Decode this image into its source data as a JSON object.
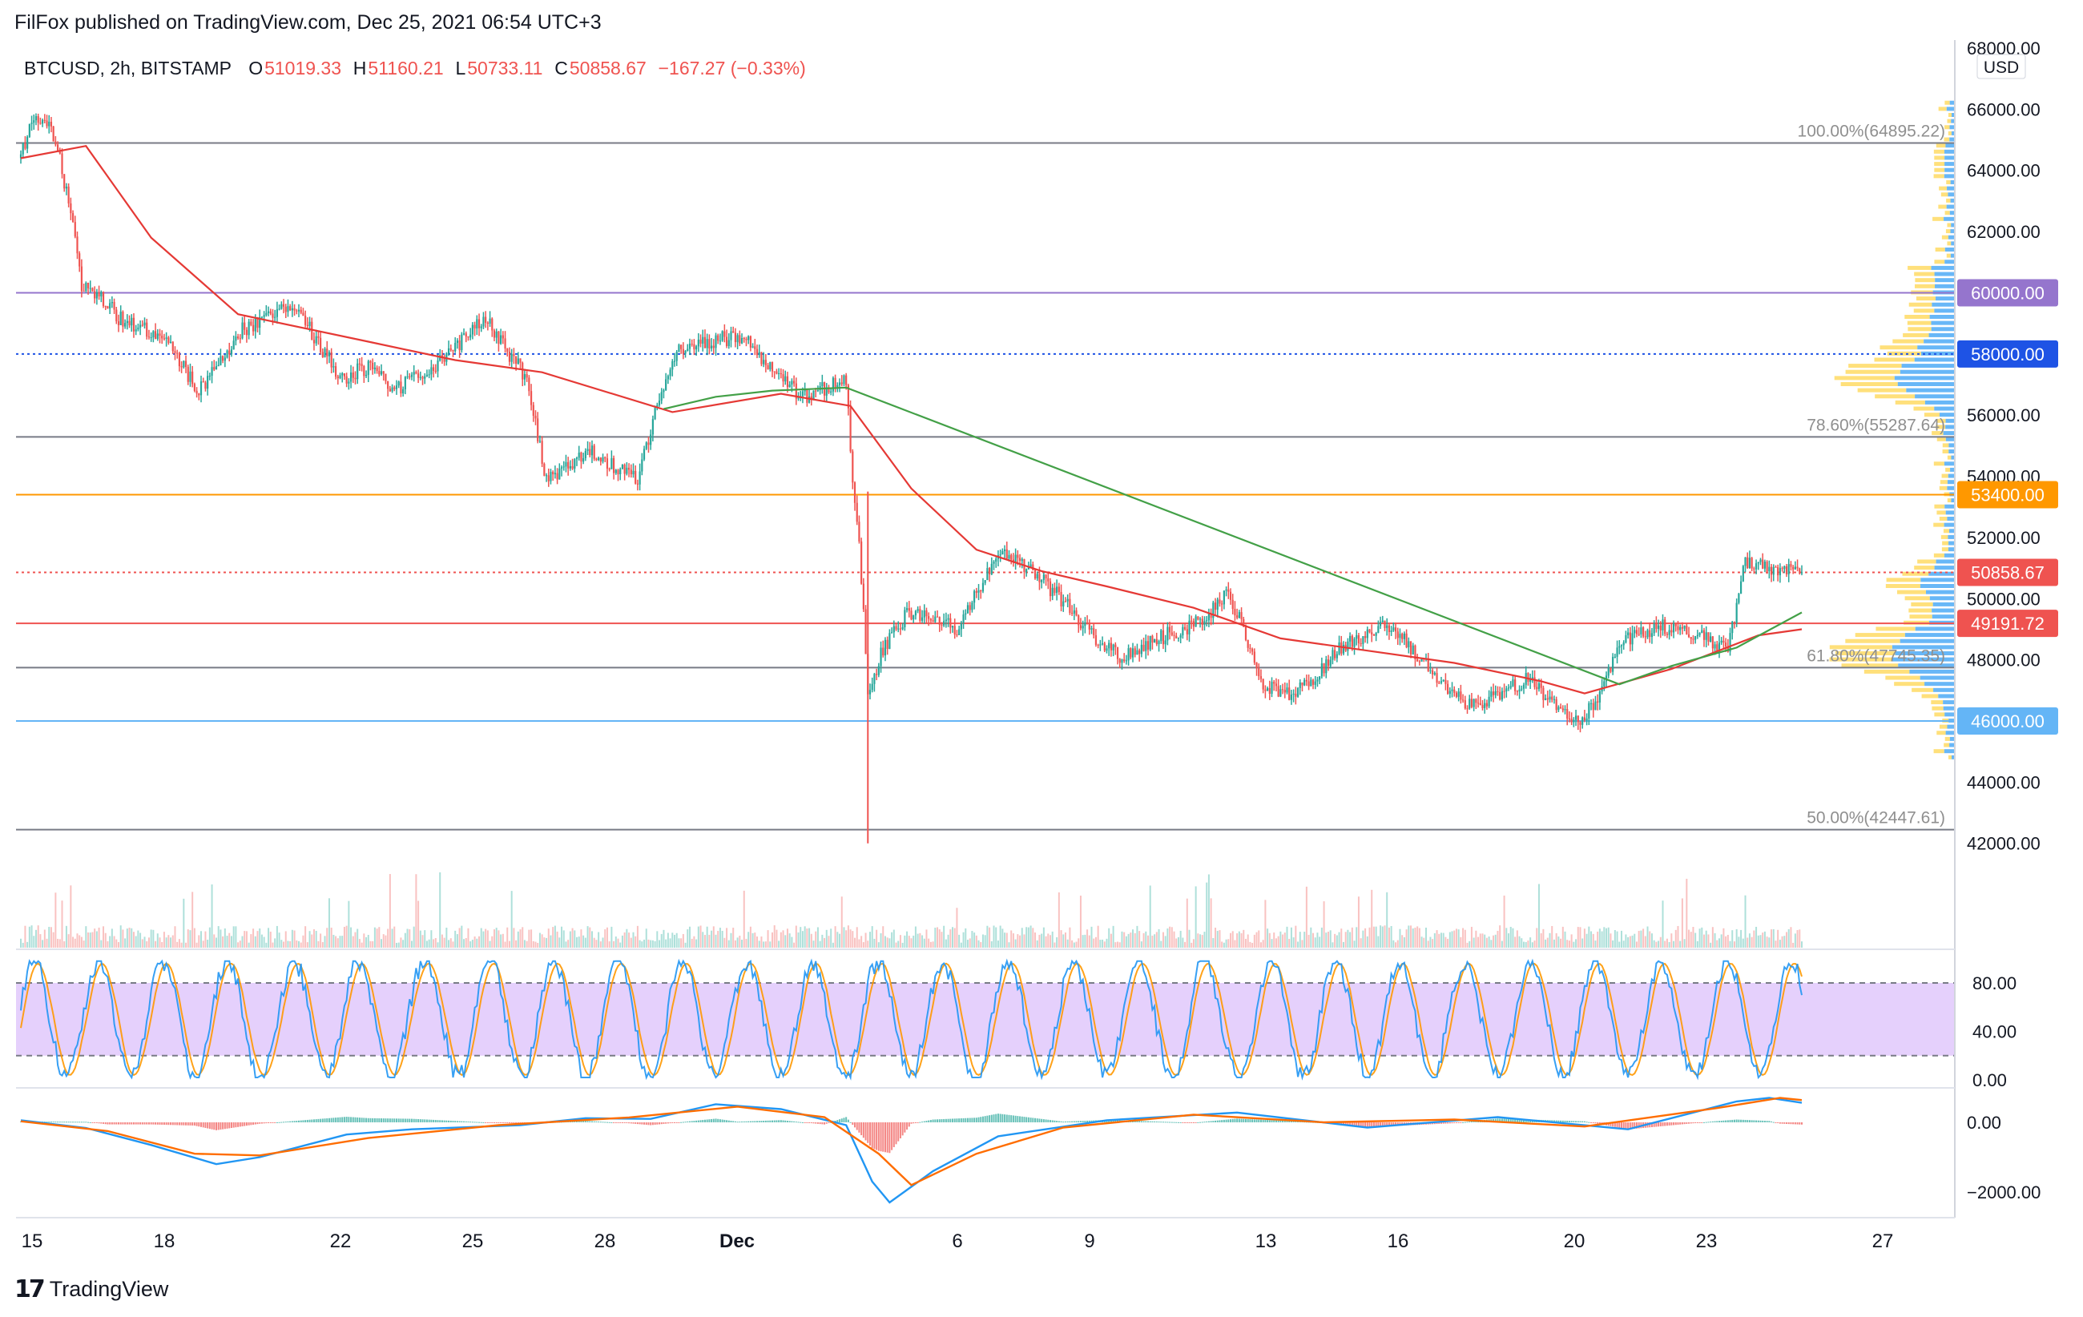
{
  "header": {
    "published": "FilFox published on TradingView.com, Dec 25, 2021 06:54 UTC+3"
  },
  "legend": {
    "symbol": "BTCUSD, 2h, BITSTAMP",
    "o_label": "O",
    "o_value": "51019.33",
    "h_label": "H",
    "h_value": "51160.21",
    "l_label": "L",
    "l_value": "50733.11",
    "c_label": "C",
    "c_value": "50858.67",
    "change": "−167.27 (−0.33%)"
  },
  "footer": {
    "brand": "TradingView"
  },
  "colors": {
    "up": "#26a69a",
    "down": "#ef5350",
    "ma_red": "#e53935",
    "ma_green": "#43a047",
    "fib_gray": "#787b86",
    "purple": "#9575cd",
    "orange": "#ff9800",
    "blue": "#1e53e5",
    "light_blue": "#64b5f6",
    "stoch_band": "#e1c8fb"
  },
  "chart_data": [
    {
      "type": "candlestick",
      "panel": "price",
      "currency_label": "USD",
      "ylim": [
        40500,
        68000
      ],
      "y_ticks": [
        "68000.00",
        "66000.00",
        "64000.00",
        "62000.00",
        "60000.00",
        "58000.00",
        "56000.00",
        "54000.00",
        "52000.00",
        "50000.00",
        "48000.00",
        "46000.00",
        "44000.00",
        "42000.00"
      ],
      "x_labels": [
        "15",
        "18",
        "22",
        "25",
        "28",
        "Dec",
        "6",
        "9",
        "13",
        "16",
        "20",
        "23",
        "27"
      ],
      "close_path": [
        [
          0,
          64400
        ],
        [
          5,
          65800
        ],
        [
          12,
          65600
        ],
        [
          16,
          65000
        ],
        [
          22,
          63000
        ],
        [
          28,
          60200
        ],
        [
          38,
          59800
        ],
        [
          45,
          59200
        ],
        [
          58,
          58800
        ],
        [
          70,
          58200
        ],
        [
          76,
          57400
        ],
        [
          82,
          56800
        ],
        [
          90,
          57500
        ],
        [
          102,
          58800
        ],
        [
          110,
          59100
        ],
        [
          118,
          59500
        ],
        [
          130,
          59200
        ],
        [
          140,
          58000
        ],
        [
          148,
          57200
        ],
        [
          160,
          57600
        ],
        [
          172,
          56800
        ],
        [
          182,
          57200
        ],
        [
          196,
          57900
        ],
        [
          208,
          58800
        ],
        [
          214,
          59200
        ],
        [
          222,
          58300
        ],
        [
          232,
          57300
        ],
        [
          238,
          55400
        ],
        [
          242,
          53900
        ],
        [
          250,
          54300
        ],
        [
          262,
          54900
        ],
        [
          275,
          54200
        ],
        [
          284,
          53900
        ],
        [
          292,
          56100
        ],
        [
          302,
          58200
        ],
        [
          316,
          58400
        ],
        [
          332,
          58600
        ],
        [
          345,
          57600
        ],
        [
          360,
          56600
        ],
        [
          372,
          56900
        ],
        [
          380,
          57200
        ],
        [
          383,
          54000
        ],
        [
          386,
          52000
        ],
        [
          390,
          46800
        ],
        [
          396,
          48200
        ],
        [
          408,
          49500
        ],
        [
          420,
          49500
        ],
        [
          432,
          49000
        ],
        [
          446,
          51000
        ],
        [
          456,
          51500
        ],
        [
          470,
          50600
        ],
        [
          482,
          49800
        ],
        [
          494,
          48700
        ],
        [
          506,
          48100
        ],
        [
          518,
          48500
        ],
        [
          530,
          48900
        ],
        [
          545,
          49300
        ],
        [
          556,
          50300
        ],
        [
          562,
          49100
        ],
        [
          572,
          47200
        ],
        [
          584,
          46900
        ],
        [
          596,
          47300
        ],
        [
          606,
          48400
        ],
        [
          616,
          48600
        ],
        [
          628,
          49300
        ],
        [
          640,
          48400
        ],
        [
          655,
          47100
        ],
        [
          668,
          46500
        ],
        [
          680,
          46900
        ],
        [
          694,
          47400
        ],
        [
          708,
          46300
        ],
        [
          718,
          45900
        ],
        [
          726,
          46800
        ],
        [
          738,
          48600
        ],
        [
          756,
          49100
        ],
        [
          772,
          48800
        ],
        [
          786,
          48300
        ],
        [
          794,
          51200
        ],
        [
          806,
          51000
        ],
        [
          820,
          50859
        ]
      ],
      "ma_red_path": [
        [
          0,
          64400
        ],
        [
          30,
          64800
        ],
        [
          60,
          61800
        ],
        [
          100,
          59300
        ],
        [
          160,
          58400
        ],
        [
          200,
          57800
        ],
        [
          240,
          57400
        ],
        [
          300,
          56100
        ],
        [
          350,
          56700
        ],
        [
          382,
          56300
        ],
        [
          410,
          53600
        ],
        [
          440,
          51600
        ],
        [
          470,
          50900
        ],
        [
          500,
          50400
        ],
        [
          540,
          49700
        ],
        [
          580,
          48700
        ],
        [
          620,
          48300
        ],
        [
          660,
          47900
        ],
        [
          700,
          47300
        ],
        [
          720,
          46900
        ],
        [
          760,
          47700
        ],
        [
          800,
          48800
        ],
        [
          820,
          49000
        ]
      ],
      "ma_green_path": [
        [
          296,
          56200
        ],
        [
          320,
          56600
        ],
        [
          346,
          56800
        ],
        [
          380,
          56900
        ],
        [
          736,
          47200
        ],
        [
          760,
          47800
        ],
        [
          790,
          48400
        ],
        [
          820,
          49550
        ]
      ],
      "horizontal_levels": [
        {
          "price": 64895.22,
          "label": "100.00%(64895.22)",
          "color": "fib_gray",
          "style": "solid"
        },
        {
          "price": 60000,
          "tag": "60000.00",
          "color": "purple",
          "style": "solid"
        },
        {
          "price": 58000,
          "tag": "58000.00",
          "color": "blue",
          "style": "dotted"
        },
        {
          "price": 55287.64,
          "label": "78.60%(55287.64)",
          "color": "fib_gray",
          "style": "solid"
        },
        {
          "price": 53400,
          "tag": "53400.00",
          "color": "orange",
          "style": "solid"
        },
        {
          "price": 50858.67,
          "tag": "50858.67",
          "color": "down",
          "style": "dotted"
        },
        {
          "price": 49191.72,
          "tag": "49191.72",
          "color": "down",
          "style": "solid"
        },
        {
          "price": 47745.35,
          "label": "61.80%(47745.35)",
          "color": "fib_gray",
          "style": "solid"
        },
        {
          "price": 46000,
          "tag": "46000.00",
          "color": "light_blue",
          "style": "solid"
        },
        {
          "price": 42447.61,
          "label": "50.00%(42447.61)",
          "color": "fib_gray",
          "style": "solid"
        }
      ]
    },
    {
      "type": "line",
      "panel": "stochastic_rsi",
      "ylim": [
        0,
        100
      ],
      "y_ticks": [
        "80.00",
        "40.00",
        "0.00"
      ],
      "band": [
        20,
        80
      ]
    },
    {
      "type": "line",
      "panel": "macd",
      "y_ticks": [
        "0.00",
        "−2000.00"
      ],
      "macd_path": [
        [
          0,
          60
        ],
        [
          30,
          -160
        ],
        [
          60,
          -650
        ],
        [
          90,
          -1200
        ],
        [
          110,
          -1000
        ],
        [
          150,
          -350
        ],
        [
          180,
          -200
        ],
        [
          230,
          -80
        ],
        [
          260,
          120
        ],
        [
          290,
          100
        ],
        [
          320,
          520
        ],
        [
          350,
          380
        ],
        [
          380,
          -80
        ],
        [
          392,
          -1700
        ],
        [
          400,
          -2300
        ],
        [
          420,
          -1400
        ],
        [
          450,
          -400
        ],
        [
          500,
          60
        ],
        [
          560,
          280
        ],
        [
          620,
          -150
        ],
        [
          680,
          150
        ],
        [
          740,
          -200
        ],
        [
          790,
          600
        ],
        [
          805,
          700
        ],
        [
          820,
          560
        ]
      ],
      "signal_path": [
        [
          0,
          30
        ],
        [
          40,
          -250
        ],
        [
          80,
          -900
        ],
        [
          110,
          -950
        ],
        [
          160,
          -450
        ],
        [
          220,
          -80
        ],
        [
          280,
          140
        ],
        [
          330,
          450
        ],
        [
          370,
          150
        ],
        [
          395,
          -900
        ],
        [
          410,
          -1800
        ],
        [
          440,
          -900
        ],
        [
          480,
          -150
        ],
        [
          540,
          220
        ],
        [
          600,
          0
        ],
        [
          660,
          80
        ],
        [
          720,
          -120
        ],
        [
          780,
          400
        ],
        [
          810,
          700
        ],
        [
          820,
          640
        ]
      ]
    }
  ]
}
